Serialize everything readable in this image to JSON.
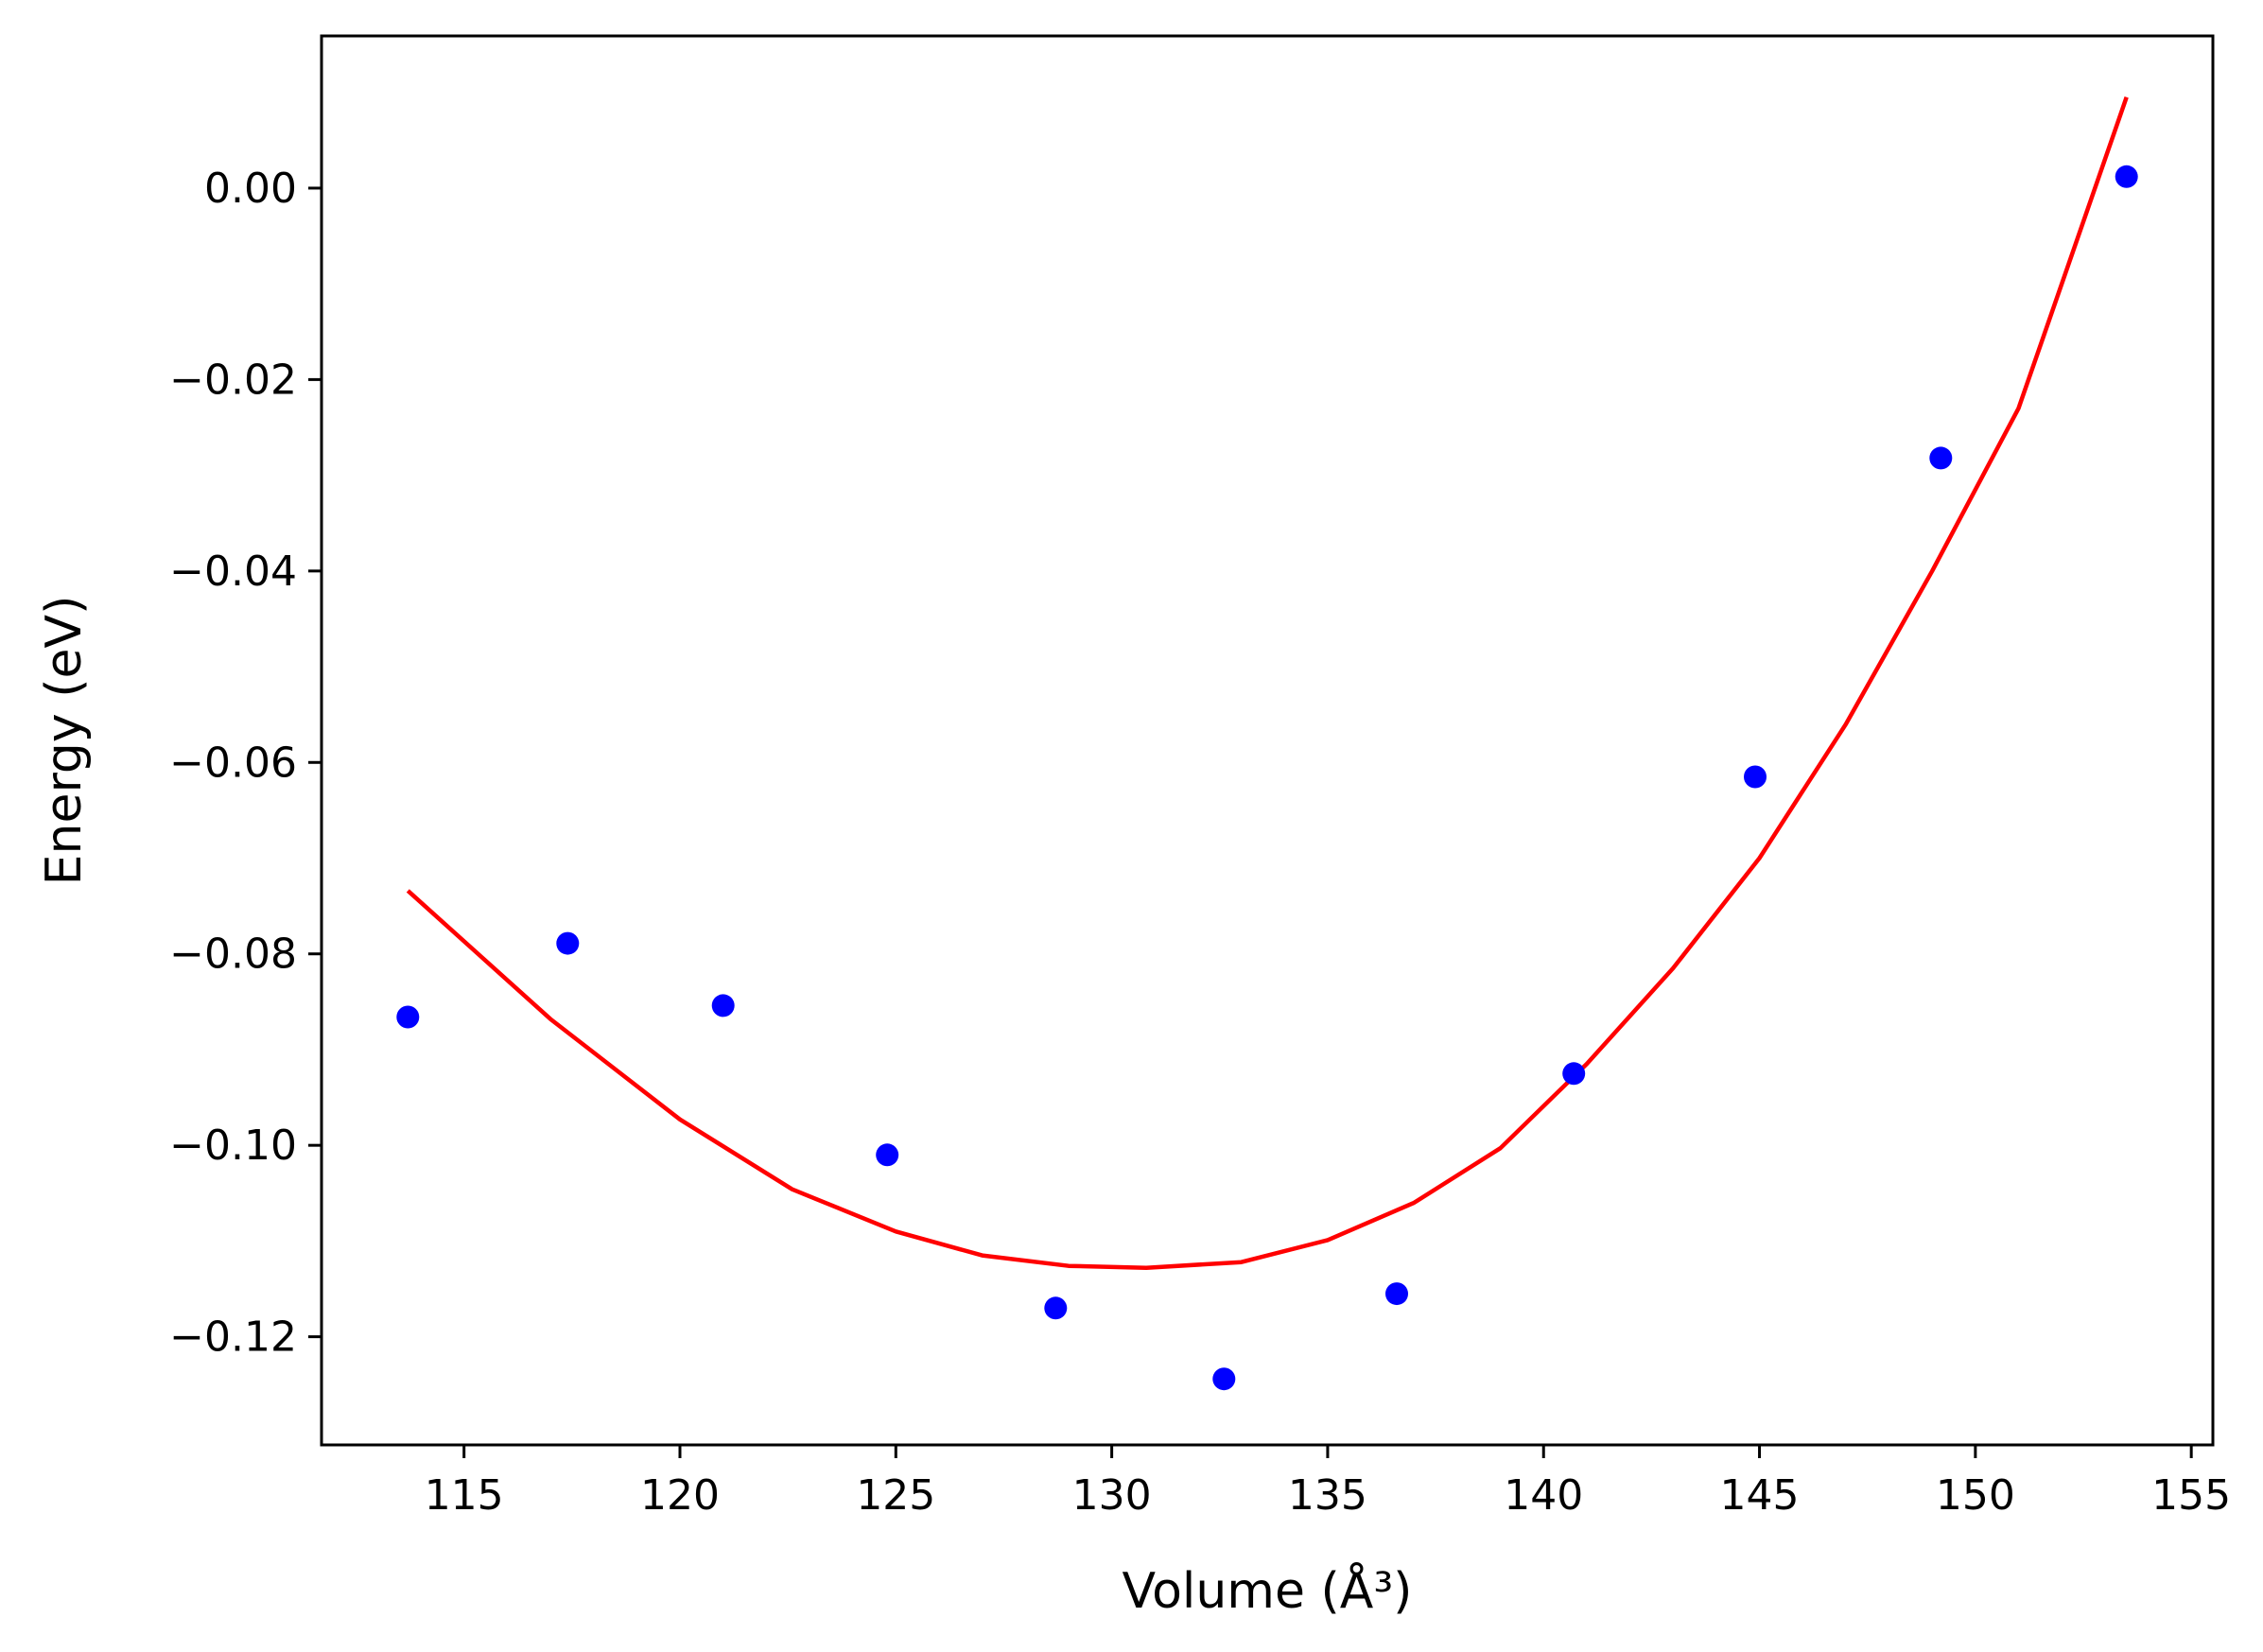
{
  "chart_data": {
    "type": "scatter",
    "xlabel": "Volume (Å³)",
    "ylabel": "Energy (eV)",
    "xlim": [
      111.7,
      155.5
    ],
    "ylim": [
      -0.1313,
      0.0159
    ],
    "grid": false,
    "x_ticks": [
      115,
      120,
      125,
      130,
      135,
      140,
      145,
      150,
      155
    ],
    "y_ticks": [
      0.0,
      -0.02,
      -0.04,
      -0.06,
      -0.08,
      -0.1,
      -0.12
    ],
    "x_tick_labels": [
      "115",
      "120",
      "125",
      "130",
      "135",
      "140",
      "145",
      "150",
      "155"
    ],
    "y_tick_labels": [
      "0.00",
      "−0.02",
      "−0.04",
      "−0.06",
      "−0.08",
      "−0.10",
      "−0.12"
    ],
    "series": [
      {
        "type": "scatter",
        "color": "#0000ff",
        "points": [
          [
            113.7,
            -0.0866
          ],
          [
            117.4,
            -0.0789
          ],
          [
            121.0,
            -0.0854
          ],
          [
            124.8,
            -0.101
          ],
          [
            128.7,
            -0.117
          ],
          [
            132.6,
            -0.1244
          ],
          [
            136.6,
            -0.1155
          ],
          [
            140.7,
            -0.0925
          ],
          [
            144.9,
            -0.0615
          ],
          [
            149.2,
            -0.0282
          ],
          [
            153.5,
            0.0012
          ]
        ]
      },
      {
        "type": "line",
        "color": "#ff0000",
        "points": [
          [
            113.7,
            -0.0734
          ],
          [
            117.0,
            -0.0868
          ],
          [
            120.0,
            -0.0973
          ],
          [
            122.6,
            -0.1046
          ],
          [
            125.0,
            -0.109
          ],
          [
            127.0,
            -0.1115
          ],
          [
            129.0,
            -0.1126
          ],
          [
            130.8,
            -0.1128
          ],
          [
            133.0,
            -0.1122
          ],
          [
            135.0,
            -0.1099
          ],
          [
            137.0,
            -0.106
          ],
          [
            139.0,
            -0.1003
          ],
          [
            141.0,
            -0.0915
          ],
          [
            143.0,
            -0.0815
          ],
          [
            145.0,
            -0.07
          ],
          [
            147.0,
            -0.056
          ],
          [
            149.0,
            -0.04
          ],
          [
            151.0,
            -0.023
          ],
          [
            153.5,
            0.0095
          ]
        ]
      }
    ]
  }
}
